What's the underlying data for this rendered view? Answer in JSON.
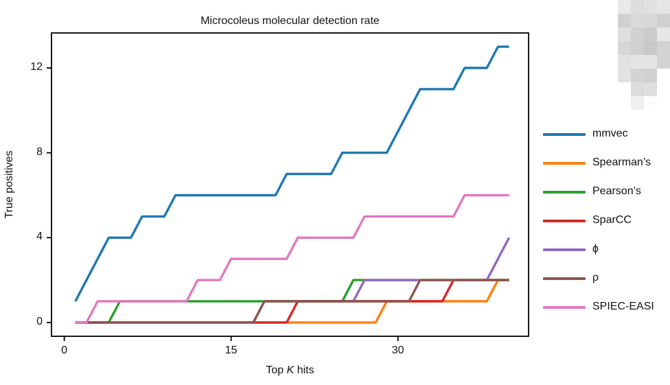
{
  "figure": {
    "title": "Microcoleus molecular detection rate",
    "ylabel": "True positives",
    "xlabel_parts": [
      "Top ",
      "K",
      " hits"
    ]
  },
  "chart_data": {
    "type": "line",
    "title": "Microcoleus molecular detection rate",
    "xlabel": "Top K hits",
    "ylabel": "True positives",
    "grid": false,
    "legend_position": "right of plot, no frame",
    "xlim": [
      -1.15,
      41.75
    ],
    "ylim": [
      -0.65,
      13.65
    ],
    "xticks": [
      0,
      15,
      30
    ],
    "yticks": [
      0,
      4,
      8,
      12
    ],
    "x": [
      1,
      2,
      3,
      4,
      5,
      6,
      7,
      8,
      9,
      10,
      11,
      12,
      13,
      14,
      15,
      16,
      17,
      18,
      19,
      20,
      21,
      22,
      23,
      24,
      25,
      26,
      27,
      28,
      29,
      30,
      31,
      32,
      33,
      34,
      35,
      36,
      37,
      38,
      39,
      40
    ],
    "series": [
      {
        "name": "mmvec",
        "color": "#1f77b4",
        "values": [
          1,
          2,
          3,
          4,
          4,
          4,
          5,
          5,
          5,
          6,
          6,
          6,
          6,
          6,
          6,
          6,
          6,
          6,
          6,
          7,
          7,
          7,
          7,
          7,
          8,
          8,
          8,
          8,
          8,
          9,
          10,
          11,
          11,
          11,
          11,
          12,
          12,
          12,
          13,
          13
        ]
      },
      {
        "name": "Spearman’s",
        "color": "#ff7f0e",
        "values": [
          0,
          0,
          0,
          0,
          0,
          0,
          0,
          0,
          0,
          0,
          0,
          0,
          0,
          0,
          0,
          0,
          0,
          0,
          0,
          0,
          0,
          0,
          0,
          0,
          0,
          0,
          0,
          0,
          1,
          1,
          1,
          1,
          1,
          1,
          1,
          1,
          1,
          1,
          2,
          2
        ]
      },
      {
        "name": "Pearson’s",
        "color": "#2ca02c",
        "values": [
          0,
          0,
          0,
          0,
          1,
          1,
          1,
          1,
          1,
          1,
          1,
          1,
          1,
          1,
          1,
          1,
          1,
          1,
          1,
          1,
          1,
          1,
          1,
          1,
          1,
          2,
          2,
          2,
          2,
          2,
          2,
          2,
          2,
          2,
          2,
          2,
          2,
          2,
          2,
          2
        ]
      },
      {
        "name": "SparCC",
        "color": "#d62728",
        "values": [
          0,
          0,
          0,
          0,
          0,
          0,
          0,
          0,
          0,
          0,
          0,
          0,
          0,
          0,
          0,
          0,
          0,
          0,
          0,
          0,
          1,
          1,
          1,
          1,
          1,
          1,
          1,
          1,
          1,
          1,
          1,
          1,
          1,
          1,
          2,
          2,
          2,
          2,
          2,
          2
        ]
      },
      {
        "name": "ϕ",
        "color": "#9467bd",
        "values": [
          0,
          0,
          0,
          0,
          0,
          0,
          0,
          0,
          0,
          0,
          0,
          0,
          0,
          0,
          0,
          0,
          0,
          1,
          1,
          1,
          1,
          1,
          1,
          1,
          1,
          1,
          2,
          2,
          2,
          2,
          2,
          2,
          2,
          2,
          2,
          2,
          2,
          2,
          3,
          4
        ]
      },
      {
        "name": "ρ",
        "color": "#8c564b",
        "values": [
          0,
          0,
          0,
          0,
          0,
          0,
          0,
          0,
          0,
          0,
          0,
          0,
          0,
          0,
          0,
          0,
          0,
          1,
          1,
          1,
          1,
          1,
          1,
          1,
          1,
          1,
          1,
          1,
          1,
          1,
          1,
          2,
          2,
          2,
          2,
          2,
          2,
          2,
          2,
          2
        ]
      },
      {
        "name": "SPIEC-EASI",
        "color": "#e377c2",
        "values": [
          0,
          0,
          1,
          1,
          1,
          1,
          1,
          1,
          1,
          1,
          1,
          2,
          2,
          2,
          3,
          3,
          3,
          3,
          3,
          3,
          4,
          4,
          4,
          4,
          4,
          4,
          5,
          5,
          5,
          5,
          5,
          5,
          5,
          5,
          5,
          6,
          6,
          6,
          6,
          6
        ]
      }
    ]
  },
  "artifact": {
    "grid": [
      [
        "#e9e9ea",
        "#dddddd",
        "#e0e0e0",
        "#e5e5e4"
      ],
      [
        "#d2d0d1",
        "#d8d9da",
        "#d7d7d8",
        "#d1cfd0"
      ],
      [
        "#dedede",
        "#d1d1d1",
        "#c9cbcc",
        "#e6e6e6"
      ],
      [
        "#d6d6d6",
        "#d0d0d2",
        "#c6c8c9",
        "#d3d3d1"
      ],
      [
        "#e2e2e2",
        "#e3e4e4",
        "#e3e4e4",
        "#d4d4d2"
      ],
      [
        "#e2e2e2",
        "#d4d4d5",
        "#d0d0d2",
        null
      ],
      [
        null,
        "#dcdcdc",
        "#dedfe0",
        null
      ],
      [
        null,
        "#efeff0",
        "#fcfefd",
        null
      ]
    ]
  }
}
